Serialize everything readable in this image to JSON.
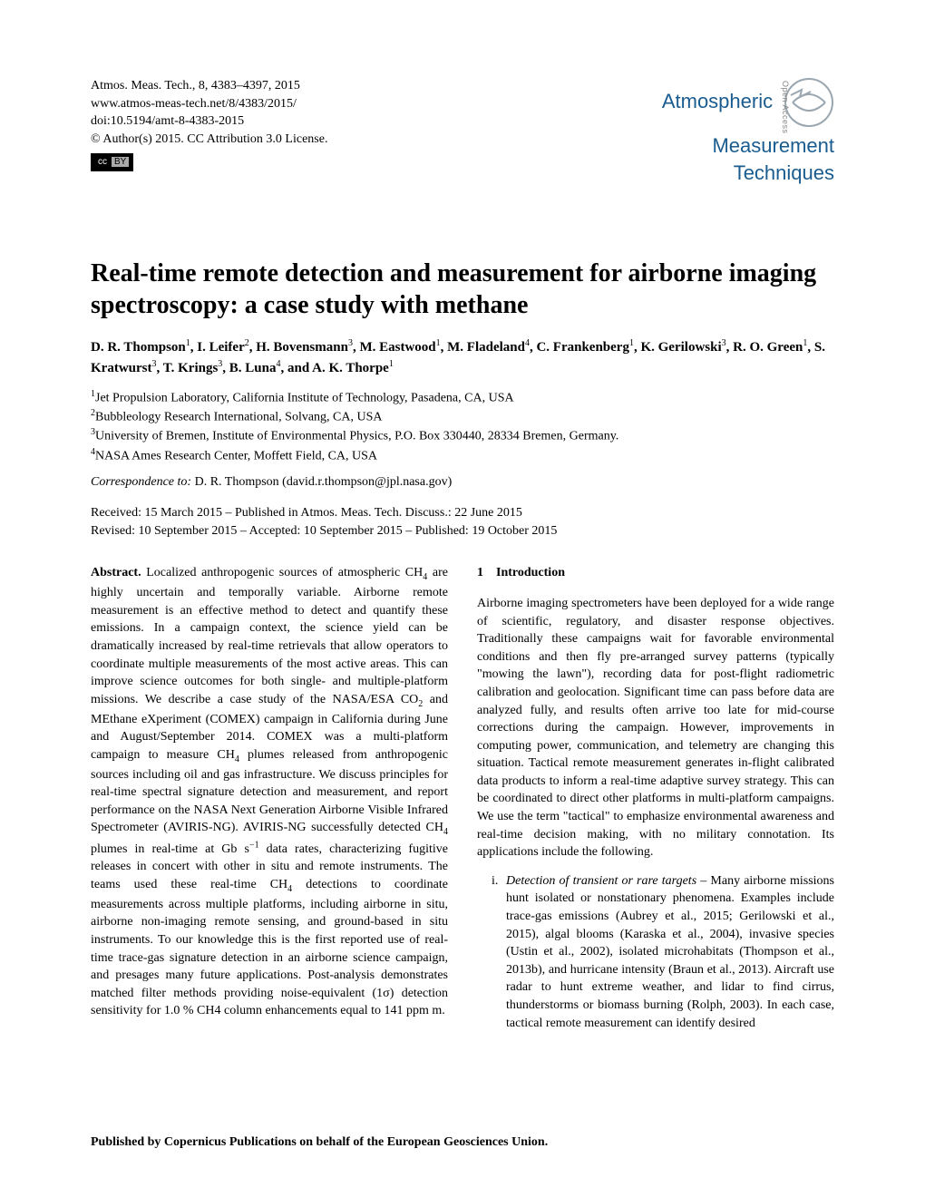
{
  "meta": {
    "citation": "Atmos. Meas. Tech., 8, 4383–4397, 2015",
    "url": "www.atmos-meas-tech.net/8/4383/2015/",
    "doi": "doi:10.5194/amt-8-4383-2015",
    "copyright": "© Author(s) 2015. CC Attribution 3.0 License.",
    "cc_label_cc": "cc",
    "cc_label_by": "BY"
  },
  "journal": {
    "line1": "Atmospheric",
    "line2": "Measurement",
    "line3": "Techniques",
    "open_access": "Open Access",
    "brand_color": "#1a5c8f",
    "logo_stroke": "#9aa7b0"
  },
  "title": "Real-time remote detection and measurement for airborne imaging spectroscopy: a case study with methane",
  "authors_html": "D. R. Thompson<sup>1</sup>, I. Leifer<sup>2</sup>, H. Bovensmann<sup>3</sup>, M. Eastwood<sup>1</sup>, M. Fladeland<sup>4</sup>, C. Frankenberg<sup>1</sup>, K. Gerilowski<sup>3</sup>, R. O. Green<sup>1</sup>, S. Kratwurst<sup>3</sup>, T. Krings<sup>3</sup>, B. Luna<sup>4</sup>, and A. K. Thorpe<sup>1</sup>",
  "affiliations": [
    "<sup>1</sup>Jet Propulsion Laboratory, California Institute of Technology, Pasadena, CA, USA",
    "<sup>2</sup>Bubbleology Research International, Solvang, CA, USA",
    "<sup>3</sup>University of Bremen, Institute of Environmental Physics, P.O. Box 330440, 28334 Bremen, Germany.",
    "<sup>4</sup>NASA Ames Research Center, Moffett Field, CA, USA"
  ],
  "correspondence": {
    "label": "Correspondence to:",
    "text": " D. R. Thompson (david.r.thompson@jpl.nasa.gov)"
  },
  "dates": {
    "line1": "Received: 15 March 2015 – Published in Atmos. Meas. Tech. Discuss.: 22 June 2015",
    "line2": "Revised: 10 September 2015 – Accepted: 10 September 2015 – Published: 19 October 2015"
  },
  "abstract": {
    "label": "Abstract.",
    "text": " Localized anthropogenic sources of atmospheric CH<sub>4</sub> are highly uncertain and temporally variable. Airborne remote measurement is an effective method to detect and quantify these emissions. In a campaign context, the science yield can be dramatically increased by real-time retrievals that allow operators to coordinate multiple measurements of the most active areas. This can improve science outcomes for both single- and multiple-platform missions. We describe a case study of the NASA/ESA CO<sub>2</sub> and MEthane eXperiment (COMEX) campaign in California during June and August/September 2014. COMEX was a multi-platform campaign to measure CH<sub>4</sub> plumes released from anthropogenic sources including oil and gas infrastructure. We discuss principles for real-time spectral signature detection and measurement, and report performance on the NASA Next Generation Airborne Visible Infrared Spectrometer (AVIRIS-NG). AVIRIS-NG successfully detected CH<sub>4</sub> plumes in real-time at Gb s<sup class=\"exp\">−1</sup> data rates, characterizing fugitive releases in concert with other in situ and remote instruments. The teams used these real-time CH<sub>4</sub> detections to coordinate measurements across multiple platforms, including airborne in situ, airborne non-imaging remote sensing, and ground-based in situ instruments. To our knowledge this is the first reported use of real-time trace-gas signature detection in an airborne science campaign, and presages many future applications. Post-analysis demonstrates matched filter methods providing noise-equivalent (1σ) detection sensitivity for 1.0 % CH4 column enhancements equal to 141 ppm m."
  },
  "intro": {
    "heading": "1 Introduction",
    "para1": "Airborne imaging spectrometers have been deployed for a wide range of scientific, regulatory, and disaster response objectives. Traditionally these campaigns wait for favorable environmental conditions and then fly pre-arranged survey patterns (typically \"mowing the lawn\"), recording data for post-flight radiometric calibration and geolocation. Significant time can pass before data are analyzed fully, and results often arrive too late for mid-course corrections during the campaign. However, improvements in computing power, communication, and telemetry are changing this situation. Tactical remote measurement generates in-flight calibrated data products to inform a real-time adaptive survey strategy. This can be coordinated to direct other platforms in multi-platform campaigns. We use the term \"tactical\" to emphasize environmental awareness and real-time decision making, with no military connotation. Its applications include the following.",
    "item_i": {
      "num": "i.",
      "lead": "Detection of transient or rare targets",
      "text": " – Many airborne missions hunt isolated or nonstationary phenomena. Examples include trace-gas emissions (Aubrey et al., 2015; Gerilowski et al., 2015), algal blooms (Karaska et al., 2004), invasive species (Ustin et al., 2002), isolated microhabitats (Thompson et al., 2013b), and hurricane intensity (Braun et al., 2013). Aircraft use radar to hunt extreme weather, and lidar to find cirrus, thunderstorms or biomass burning (Rolph, 2003). In each case, tactical remote measurement can identify desired"
    }
  },
  "footer": "Published by Copernicus Publications on behalf of the European Geosciences Union."
}
